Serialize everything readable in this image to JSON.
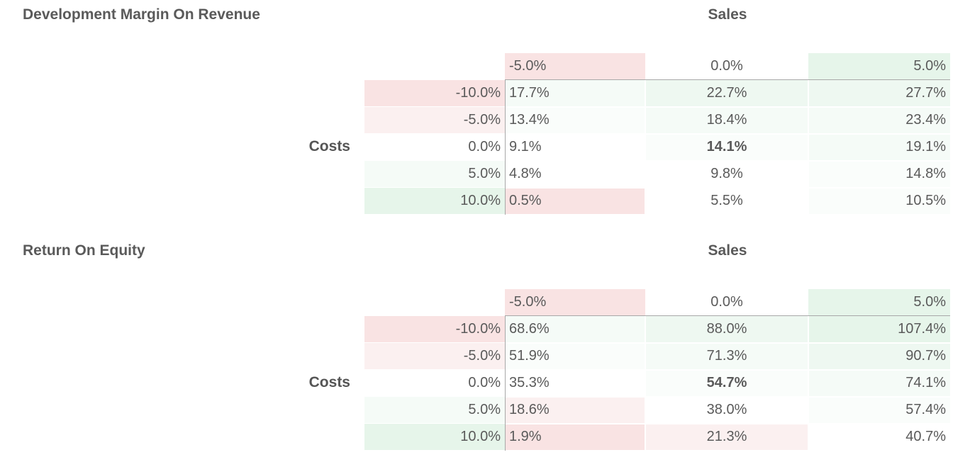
{
  "colors": {
    "red_strong": "#f9e3e3",
    "red_light": "#fbf0f0",
    "green_strong": "#e6f5ea",
    "green_medium": "#eef8f1",
    "green_light": "#f5fbf7",
    "green_faint": "#fafdfb",
    "neutral": "#ffffff"
  },
  "tables": [
    {
      "title": "Development Margin On Revenue",
      "col_axis_label": "Sales",
      "row_axis_label": "Costs",
      "col_headers": [
        "-5.0%",
        "0.0%",
        "5.0%"
      ],
      "col_header_colors": [
        "#f9e3e3",
        "#ffffff",
        "#e6f5ea"
      ],
      "rows": [
        {
          "header": "-10.0%",
          "header_color": "#f9e3e3",
          "values": [
            "17.7%",
            "22.7%",
            "27.7%"
          ],
          "colors": [
            "#f5fbf7",
            "#eef8f1",
            "#eef8f1"
          ]
        },
        {
          "header": "-5.0%",
          "header_color": "#fbf0f0",
          "values": [
            "13.4%",
            "18.4%",
            "23.4%"
          ],
          "colors": [
            "#fafdfb",
            "#f5fbf7",
            "#f5fbf7"
          ]
        },
        {
          "header": "0.0%",
          "header_color": "#ffffff",
          "values": [
            "9.1%",
            "14.1%",
            "19.1%"
          ],
          "colors": [
            "#ffffff",
            "#fafdfb",
            "#f5fbf7"
          ]
        },
        {
          "header": "5.0%",
          "header_color": "#f5fbf7",
          "values": [
            "4.8%",
            "9.8%",
            "14.8%"
          ],
          "colors": [
            "#ffffff",
            "#ffffff",
            "#fafdfb"
          ]
        },
        {
          "header": "10.0%",
          "header_color": "#e6f5ea",
          "values": [
            "0.5%",
            "5.5%",
            "10.5%"
          ],
          "colors": [
            "#f9e3e3",
            "#ffffff",
            "#fafdfb"
          ]
        }
      ],
      "base_cell": [
        2,
        1
      ]
    },
    {
      "title": "Return On Equity",
      "col_axis_label": "Sales",
      "row_axis_label": "Costs",
      "col_headers": [
        "-5.0%",
        "0.0%",
        "5.0%"
      ],
      "col_header_colors": [
        "#f9e3e3",
        "#ffffff",
        "#e6f5ea"
      ],
      "rows": [
        {
          "header": "-10.0%",
          "header_color": "#f9e3e3",
          "values": [
            "68.6%",
            "88.0%",
            "107.4%"
          ],
          "colors": [
            "#f5fbf7",
            "#eef8f1",
            "#e6f5ea"
          ]
        },
        {
          "header": "-5.0%",
          "header_color": "#fbf0f0",
          "values": [
            "51.9%",
            "71.3%",
            "90.7%"
          ],
          "colors": [
            "#fafdfb",
            "#f5fbf7",
            "#eef8f1"
          ]
        },
        {
          "header": "0.0%",
          "header_color": "#ffffff",
          "values": [
            "35.3%",
            "54.7%",
            "74.1%"
          ],
          "colors": [
            "#ffffff",
            "#fafdfb",
            "#f5fbf7"
          ]
        },
        {
          "header": "5.0%",
          "header_color": "#f5fbf7",
          "values": [
            "18.6%",
            "38.0%",
            "57.4%"
          ],
          "colors": [
            "#fbf0f0",
            "#ffffff",
            "#fafdfb"
          ]
        },
        {
          "header": "10.0%",
          "header_color": "#e6f5ea",
          "values": [
            "1.9%",
            "21.3%",
            "40.7%"
          ],
          "colors": [
            "#f9e3e3",
            "#fbf0f0",
            "#ffffff"
          ]
        }
      ],
      "base_cell": [
        2,
        1
      ]
    }
  ]
}
